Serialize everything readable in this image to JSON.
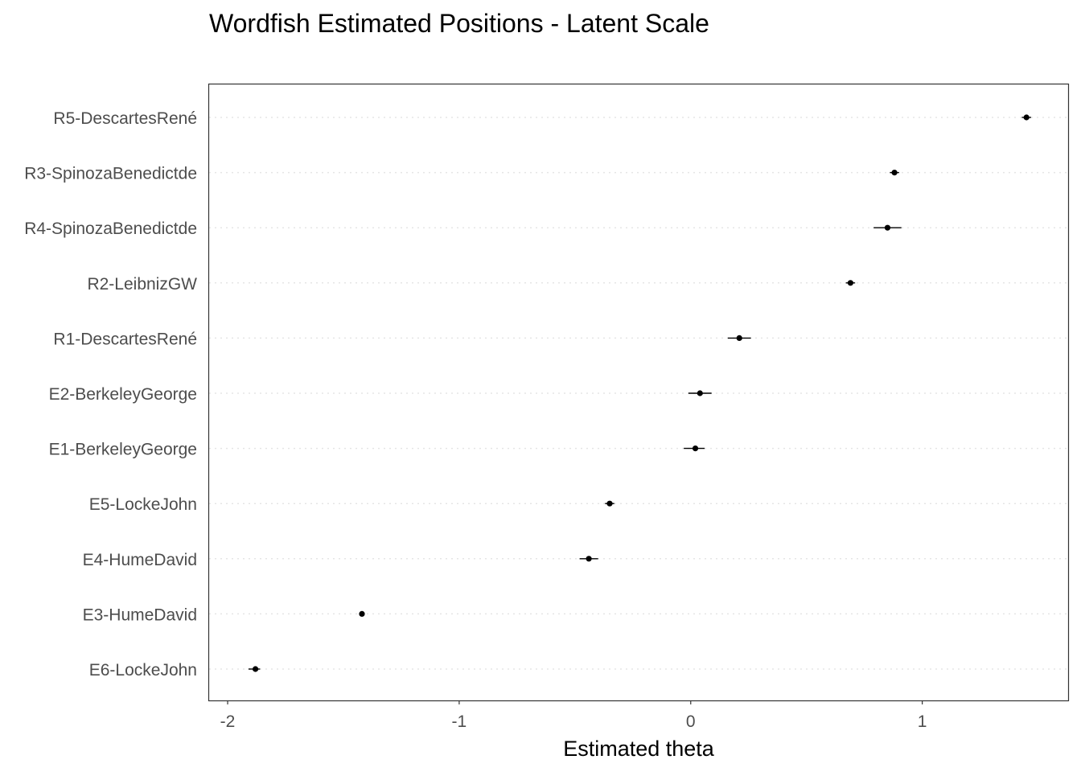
{
  "chart_data": {
    "type": "scatter",
    "title": "Wordfish Estimated Positions - Latent Scale",
    "xlabel": "Estimated theta",
    "ylabel": "",
    "xlim": [
      -2.08,
      1.63
    ],
    "xticks": [
      -2,
      -1,
      0,
      1
    ],
    "grid": "horizontal dotted",
    "colors": {
      "point": "#000000",
      "grid": "#e5e5e5",
      "frame": "#333333",
      "tick_text": "#4d4d4d"
    },
    "points": [
      {
        "label": "R5-DescartesRené",
        "theta": 1.45,
        "lower": 1.43,
        "upper": 1.47
      },
      {
        "label": "R3-SpinozaBenedictde",
        "theta": 0.88,
        "lower": 0.86,
        "upper": 0.9
      },
      {
        "label": "R4-SpinozaBenedictde",
        "theta": 0.85,
        "lower": 0.79,
        "upper": 0.91
      },
      {
        "label": "R2-LeibnizGW",
        "theta": 0.69,
        "lower": 0.67,
        "upper": 0.71
      },
      {
        "label": "R1-DescartesRené",
        "theta": 0.21,
        "lower": 0.16,
        "upper": 0.26
      },
      {
        "label": "E2-BerkeleyGeorge",
        "theta": 0.04,
        "lower": -0.01,
        "upper": 0.09
      },
      {
        "label": "E1-BerkeleyGeorge",
        "theta": 0.02,
        "lower": -0.03,
        "upper": 0.06
      },
      {
        "label": "E5-LockeJohn",
        "theta": -0.35,
        "lower": -0.37,
        "upper": -0.33
      },
      {
        "label": "E4-HumeDavid",
        "theta": -0.44,
        "lower": -0.48,
        "upper": -0.4
      },
      {
        "label": "E3-HumeDavid",
        "theta": -1.42,
        "lower": -1.43,
        "upper": -1.41
      },
      {
        "label": "E6-LockeJohn",
        "theta": -1.88,
        "lower": -1.91,
        "upper": -1.86
      }
    ]
  }
}
